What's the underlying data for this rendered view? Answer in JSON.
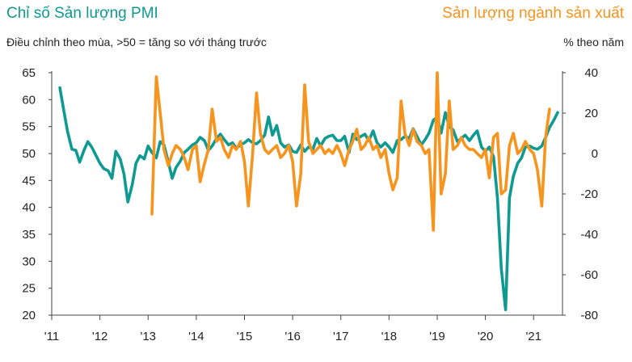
{
  "chart_data": {
    "type": "line",
    "title_left": "Chỉ số Sản lượng PMI",
    "subtitle_left": "Điều chỉnh theo mùa, >50 = tăng so với tháng trước",
    "title_right": "Sản lượng ngành sản xuất",
    "subtitle_right": "% theo năm",
    "y_left": {
      "ylim": [
        20,
        65
      ],
      "ticks": [
        "65",
        "60",
        "55",
        "50",
        "45",
        "40",
        "35",
        "30",
        "25",
        "20"
      ]
    },
    "y_right": {
      "ylim": [
        -80,
        40
      ],
      "ticks": [
        "40",
        "20",
        "0",
        "-20",
        "-40",
        "-60",
        "-80"
      ]
    },
    "x": {
      "xlim": [
        2011.0,
        2021.6
      ],
      "ticks": [
        "'11",
        "'12",
        "'13",
        "'14",
        "'15",
        "'16",
        "'17",
        "'18",
        "'19",
        "'20",
        "'21"
      ]
    },
    "colors": {
      "pmi": "#0e9a91",
      "production": "#f7941d"
    },
    "series": [
      {
        "axis": "left",
        "points": [
          [
            2011.17,
            62.2
          ],
          [
            2011.25,
            58
          ],
          [
            2011.33,
            54
          ],
          [
            2011.42,
            50.8
          ],
          [
            2011.5,
            50.6
          ],
          [
            2011.58,
            48.4
          ],
          [
            2011.67,
            50.6
          ],
          [
            2011.75,
            52.2
          ],
          [
            2011.83,
            51.2
          ],
          [
            2011.92,
            49.6
          ],
          [
            2012.0,
            48.2
          ],
          [
            2012.08,
            47.2
          ],
          [
            2012.17,
            46.8
          ],
          [
            2012.25,
            45.4
          ],
          [
            2012.33,
            50.4
          ],
          [
            2012.42,
            49
          ],
          [
            2012.5,
            46.2
          ],
          [
            2012.58,
            41
          ],
          [
            2012.67,
            44.2
          ],
          [
            2012.75,
            48.2
          ],
          [
            2012.83,
            49.6
          ],
          [
            2012.92,
            49
          ],
          [
            2013.0,
            51.4
          ],
          [
            2013.08,
            50.2
          ],
          [
            2013.17,
            49.2
          ],
          [
            2013.25,
            52.2
          ],
          [
            2013.33,
            51.6
          ],
          [
            2013.42,
            48.4
          ],
          [
            2013.5,
            45.4
          ],
          [
            2013.58,
            47.4
          ],
          [
            2013.67,
            48.6
          ],
          [
            2013.75,
            50.2
          ],
          [
            2013.83,
            50.8
          ],
          [
            2013.92,
            51.6
          ],
          [
            2014.0,
            52
          ],
          [
            2014.08,
            53
          ],
          [
            2014.17,
            52.4
          ],
          [
            2014.25,
            50.6
          ],
          [
            2014.33,
            51.4
          ],
          [
            2014.42,
            52.8
          ],
          [
            2014.5,
            53.6
          ],
          [
            2014.58,
            52.6
          ],
          [
            2014.67,
            51.6
          ],
          [
            2014.75,
            52
          ],
          [
            2014.83,
            51
          ],
          [
            2014.92,
            51.6
          ],
          [
            2015.0,
            52
          ],
          [
            2015.08,
            52.6
          ],
          [
            2015.17,
            52
          ],
          [
            2015.25,
            51.8
          ],
          [
            2015.33,
            52.4
          ],
          [
            2015.42,
            53.4
          ],
          [
            2015.5,
            56.8
          ],
          [
            2015.58,
            53.4
          ],
          [
            2015.67,
            55.2
          ],
          [
            2015.75,
            52
          ],
          [
            2015.83,
            51.2
          ],
          [
            2015.92,
            51.6
          ],
          [
            2016.0,
            50.4
          ],
          [
            2016.08,
            50.2
          ],
          [
            2016.17,
            51.6
          ],
          [
            2016.25,
            50.4
          ],
          [
            2016.33,
            51.2
          ],
          [
            2016.42,
            50.8
          ],
          [
            2016.5,
            52.8
          ],
          [
            2016.58,
            51.4
          ],
          [
            2016.67,
            52.8
          ],
          [
            2016.75,
            53.2
          ],
          [
            2016.83,
            53.4
          ],
          [
            2016.92,
            52.4
          ],
          [
            2017.0,
            52.4
          ],
          [
            2017.08,
            53.2
          ],
          [
            2017.17,
            50.2
          ],
          [
            2017.25,
            53.6
          ],
          [
            2017.33,
            52.6
          ],
          [
            2017.42,
            53.2
          ],
          [
            2017.5,
            53.6
          ],
          [
            2017.58,
            52.4
          ],
          [
            2017.67,
            54.2
          ],
          [
            2017.75,
            52
          ],
          [
            2017.83,
            51.2
          ],
          [
            2017.92,
            52
          ],
          [
            2018.0,
            51.2
          ],
          [
            2018.08,
            50.2
          ],
          [
            2018.17,
            52.4
          ],
          [
            2018.25,
            52.6
          ],
          [
            2018.33,
            53.2
          ],
          [
            2018.42,
            52.8
          ],
          [
            2018.5,
            54.6
          ],
          [
            2018.58,
            53.2
          ],
          [
            2018.67,
            51.6
          ],
          [
            2018.75,
            52.6
          ],
          [
            2018.83,
            53.8
          ],
          [
            2018.92,
            56.2
          ],
          [
            2019.0,
            56.8
          ],
          [
            2019.08,
            53.8
          ],
          [
            2019.17,
            57.6
          ],
          [
            2019.25,
            55
          ],
          [
            2019.33,
            54.4
          ],
          [
            2019.42,
            52.2
          ],
          [
            2019.5,
            52.8
          ],
          [
            2019.58,
            53.4
          ],
          [
            2019.67,
            52.4
          ],
          [
            2019.75,
            53.4
          ],
          [
            2019.83,
            54.2
          ],
          [
            2019.92,
            51.2
          ],
          [
            2020.0,
            50.4
          ],
          [
            2020.08,
            51.2
          ],
          [
            2020.17,
            49.4
          ],
          [
            2020.25,
            41.8
          ],
          [
            2020.33,
            28.6
          ],
          [
            2020.42,
            21
          ],
          [
            2020.5,
            41.8
          ],
          [
            2020.58,
            45.8
          ],
          [
            2020.67,
            48.2
          ],
          [
            2020.75,
            49.2
          ],
          [
            2020.83,
            51.2
          ],
          [
            2020.92,
            51.4
          ],
          [
            2021.0,
            51
          ],
          [
            2021.08,
            50.8
          ],
          [
            2021.17,
            51.4
          ],
          [
            2021.25,
            53
          ],
          [
            2021.33,
            54.8
          ],
          [
            2021.42,
            56.2
          ],
          [
            2021.5,
            57.6
          ]
        ]
      },
      {
        "axis": "right",
        "points": [
          [
            2013.08,
            -30
          ],
          [
            2013.17,
            38
          ],
          [
            2013.25,
            20
          ],
          [
            2013.33,
            2
          ],
          [
            2013.42,
            -6
          ],
          [
            2013.5,
            0
          ],
          [
            2013.58,
            4
          ],
          [
            2013.67,
            2
          ],
          [
            2013.75,
            -2
          ],
          [
            2013.83,
            -8
          ],
          [
            2013.92,
            2
          ],
          [
            2014.0,
            4
          ],
          [
            2014.08,
            -14
          ],
          [
            2014.17,
            -5
          ],
          [
            2014.25,
            2
          ],
          [
            2014.33,
            22
          ],
          [
            2014.42,
            6
          ],
          [
            2014.5,
            8
          ],
          [
            2014.58,
            2
          ],
          [
            2014.67,
            -2
          ],
          [
            2014.75,
            4
          ],
          [
            2014.83,
            2
          ],
          [
            2014.92,
            6
          ],
          [
            2015.0,
            -4
          ],
          [
            2015.08,
            -26
          ],
          [
            2015.17,
            0
          ],
          [
            2015.25,
            30
          ],
          [
            2015.33,
            10
          ],
          [
            2015.42,
            2
          ],
          [
            2015.5,
            0
          ],
          [
            2015.58,
            2
          ],
          [
            2015.67,
            4
          ],
          [
            2015.75,
            -2
          ],
          [
            2015.83,
            0
          ],
          [
            2015.92,
            4
          ],
          [
            2016.0,
            -4
          ],
          [
            2016.08,
            -26
          ],
          [
            2016.17,
            -10
          ],
          [
            2016.25,
            34
          ],
          [
            2016.33,
            6
          ],
          [
            2016.42,
            0
          ],
          [
            2016.5,
            2
          ],
          [
            2016.58,
            4
          ],
          [
            2016.67,
            0
          ],
          [
            2016.75,
            2
          ],
          [
            2016.83,
            0
          ],
          [
            2016.92,
            4
          ],
          [
            2017.0,
            0
          ],
          [
            2017.08,
            -6
          ],
          [
            2017.17,
            2
          ],
          [
            2017.25,
            6
          ],
          [
            2017.33,
            12
          ],
          [
            2017.42,
            2
          ],
          [
            2017.5,
            4
          ],
          [
            2017.58,
            8
          ],
          [
            2017.67,
            2
          ],
          [
            2017.75,
            4
          ],
          [
            2017.83,
            -2
          ],
          [
            2017.92,
            2
          ],
          [
            2018.0,
            -10
          ],
          [
            2018.08,
            -18
          ],
          [
            2018.17,
            -12
          ],
          [
            2018.25,
            26
          ],
          [
            2018.33,
            10
          ],
          [
            2018.42,
            4
          ],
          [
            2018.5,
            12
          ],
          [
            2018.58,
            6
          ],
          [
            2018.67,
            4
          ],
          [
            2018.75,
            0
          ],
          [
            2018.83,
            2
          ],
          [
            2018.92,
            -38
          ],
          [
            2019.0,
            40
          ],
          [
            2019.08,
            -20
          ],
          [
            2019.17,
            -10
          ],
          [
            2019.25,
            26
          ],
          [
            2019.33,
            2
          ],
          [
            2019.42,
            4
          ],
          [
            2019.5,
            8
          ],
          [
            2019.58,
            4
          ],
          [
            2019.67,
            2
          ],
          [
            2019.75,
            2
          ],
          [
            2019.83,
            0
          ],
          [
            2019.92,
            -2
          ],
          [
            2020.0,
            2
          ],
          [
            2020.08,
            -12
          ],
          [
            2020.17,
            8
          ],
          [
            2020.25,
            10
          ],
          [
            2020.33,
            -20
          ],
          [
            2020.42,
            -18
          ],
          [
            2020.5,
            4
          ],
          [
            2020.58,
            10
          ],
          [
            2020.67,
            0
          ],
          [
            2020.75,
            2
          ],
          [
            2020.83,
            6
          ],
          [
            2020.92,
            2
          ],
          [
            2021.0,
            0
          ],
          [
            2021.08,
            -8
          ],
          [
            2021.17,
            -26
          ],
          [
            2021.25,
            8
          ],
          [
            2021.33,
            22
          ]
        ]
      }
    ]
  }
}
